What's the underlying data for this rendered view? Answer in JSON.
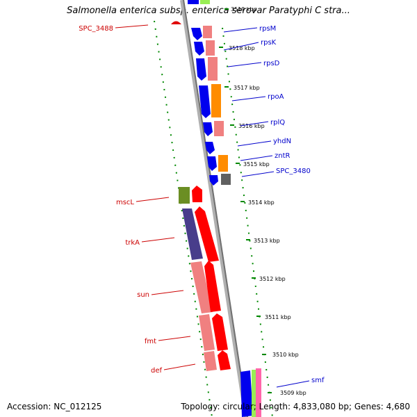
{
  "title": "Salmonella enterica subsp. enterica serovar Paratyphi C stra...",
  "footer": {
    "accession": "Accession: NC_012125",
    "topology": "Topology: circular; Length: 4,833,080 bp; Genes: 4,680"
  },
  "colors": {
    "backbone": "#808080",
    "forward_label": "#0000cc",
    "reverse_label": "#cc0000",
    "dots": "#008800"
  },
  "kbp_ticks": [
    "3519 kbp",
    "3518 kbp",
    "3517 kbp",
    "3516 kbp",
    "3515 kbp",
    "3514 kbp",
    "3513 kbp",
    "3512 kbp",
    "3511 kbp",
    "3510 kbp",
    "3509 kbp"
  ],
  "gene_labels_forward": [
    "rpsM",
    "rpsK",
    "rpsD",
    "rpoA",
    "rplQ",
    "yhdN",
    "zntR",
    "SPC_3480",
    "smf"
  ],
  "gene_labels_reverse": [
    "SPC_3488",
    "mscL",
    "trkA",
    "sun",
    "fmt",
    "def"
  ]
}
